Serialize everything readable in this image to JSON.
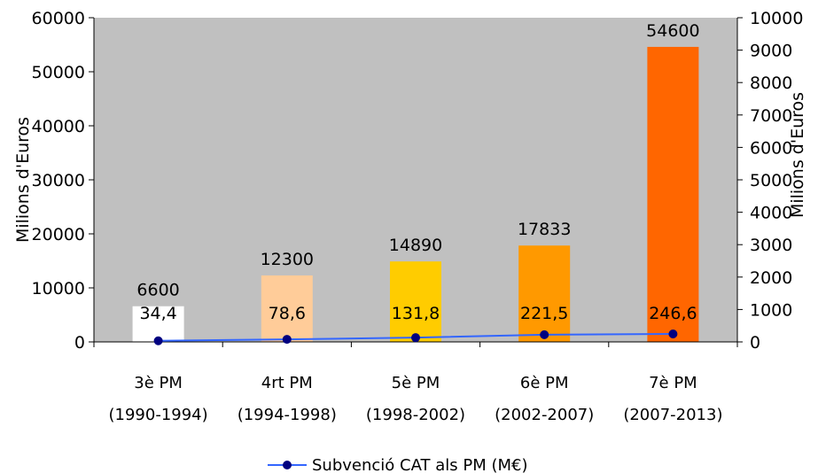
{
  "chart_data": {
    "type": "bar",
    "categories": [
      [
        "3è PM",
        "(1990-1994)"
      ],
      [
        "4rt PM",
        "(1994-1998)"
      ],
      [
        "5è PM",
        "(1998-2002)"
      ],
      [
        "6è PM",
        "(2002-2007)"
      ],
      [
        "7è PM",
        "(2007-2013)"
      ]
    ],
    "series": [
      {
        "axis": "left",
        "kind": "bar",
        "values": [
          6600,
          12300,
          14890,
          17833,
          54600
        ],
        "data_labels": [
          "6600",
          "12300",
          "14890",
          "17833",
          "54600"
        ],
        "colors": [
          "#ffffff",
          "#ffcc99",
          "#ffcc00",
          "#ff9900",
          "#ff6600"
        ]
      },
      {
        "name": "Subvenció CAT als PM (M€)",
        "axis": "right",
        "kind": "line",
        "values": [
          34.4,
          78.6,
          131.8,
          221.5,
          246.6
        ],
        "data_labels": [
          "34,4",
          "78,6",
          "131,8",
          "221,5",
          "246,6"
        ],
        "color": "#3366ff",
        "marker_color": "#000080"
      }
    ],
    "ylabel": "Milions d'Euros",
    "y2label": "Milions d'Euros",
    "ylim": [
      0,
      60000
    ],
    "y2lim": [
      0,
      10000
    ],
    "yticks": [
      0,
      10000,
      20000,
      30000,
      40000,
      50000,
      60000
    ],
    "y2ticks": [
      0,
      1000,
      2000,
      3000,
      4000,
      5000,
      6000,
      7000,
      8000,
      9000,
      10000
    ],
    "plot_background": "#c0c0c0",
    "grid": false,
    "legend_position": "bottom"
  }
}
